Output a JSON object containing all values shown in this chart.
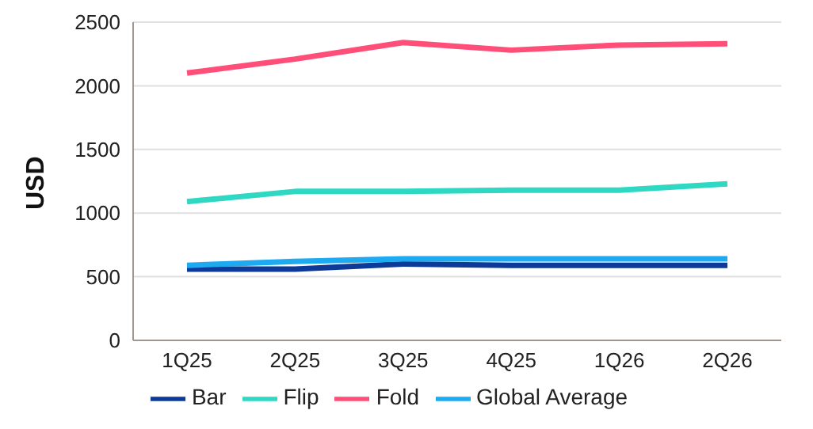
{
  "chart_data": {
    "type": "line",
    "ylabel": "USD",
    "categories": [
      "1Q25",
      "2Q25",
      "3Q25",
      "4Q25",
      "1Q26",
      "2Q26"
    ],
    "series": [
      {
        "name": "Bar",
        "color": "#0d3a99",
        "values": [
          560,
          560,
          600,
          590,
          590,
          590
        ]
      },
      {
        "name": "Flip",
        "color": "#2ed8c3",
        "values": [
          1090,
          1170,
          1170,
          1180,
          1180,
          1230
        ]
      },
      {
        "name": "Fold",
        "color": "#ff4f79",
        "values": [
          2100,
          2210,
          2340,
          2280,
          2320,
          2330
        ]
      },
      {
        "name": "Global Average",
        "color": "#1eaaf0",
        "values": [
          590,
          620,
          640,
          640,
          640,
          640
        ]
      }
    ],
    "ylim": [
      0,
      2500
    ],
    "yticks": [
      0,
      500,
      1000,
      1500,
      2000,
      2500
    ],
    "grid": "y",
    "legend": "bottom",
    "marker": "none",
    "line_style": "solid"
  }
}
